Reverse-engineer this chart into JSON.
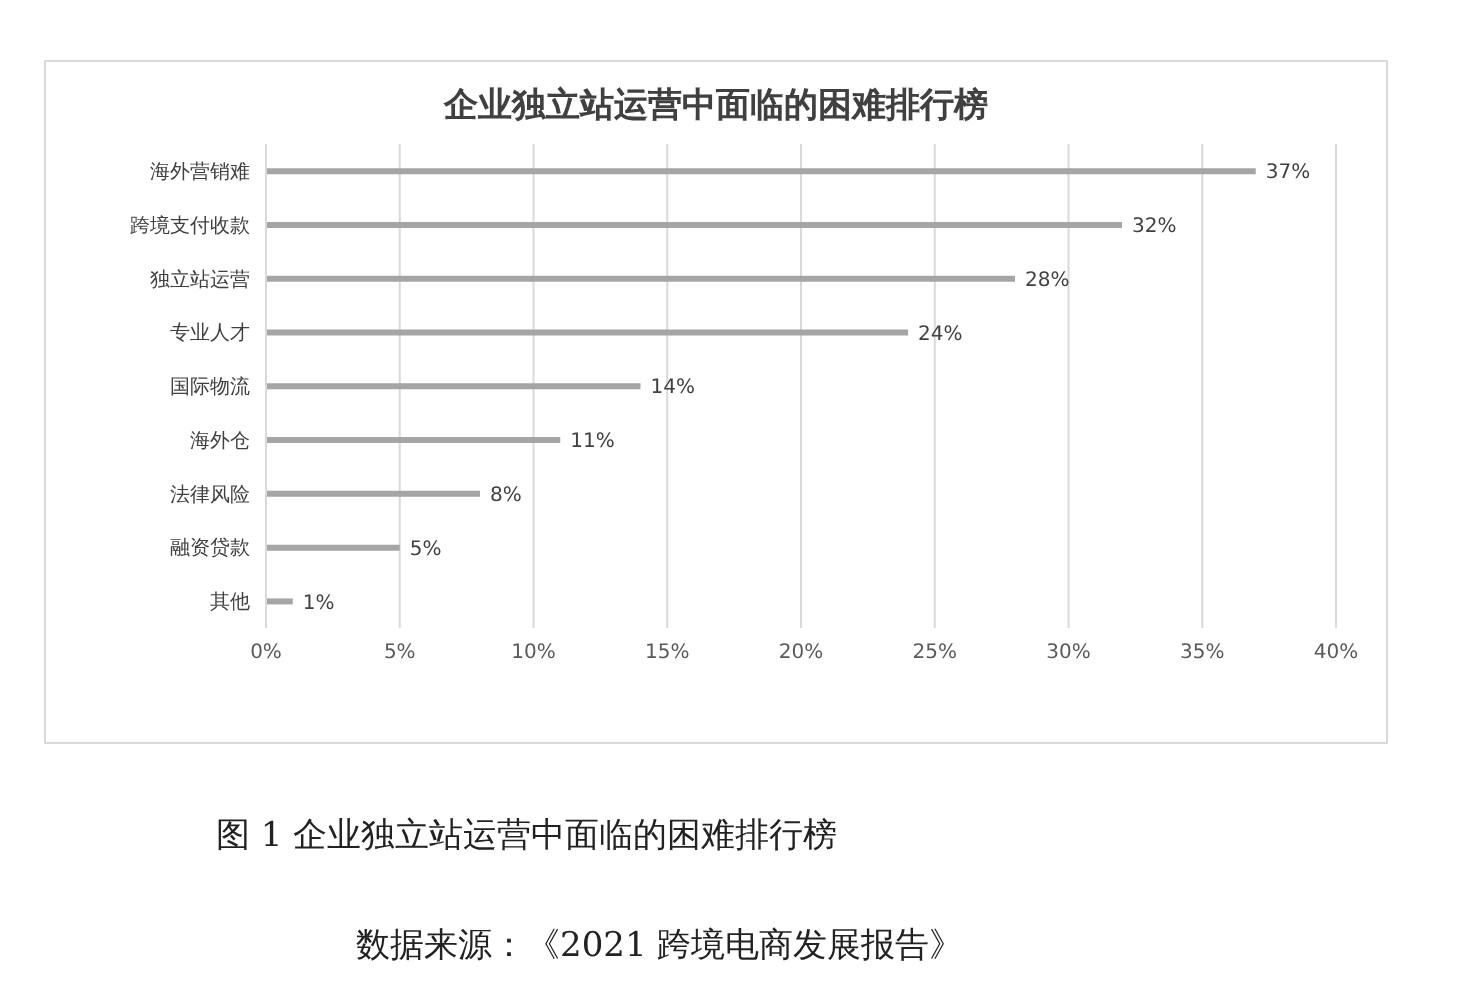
{
  "chart_data": {
    "type": "bar",
    "orientation": "horizontal",
    "title": "企业独立站运营中面临的困难排行榜",
    "categories": [
      "海外营销难",
      "跨境支付收款",
      "独立站运营",
      "专业人才",
      "国际物流",
      "海外仓",
      "法律风险",
      "融资贷款",
      "其他"
    ],
    "values": [
      37,
      32,
      28,
      24,
      14,
      11,
      8,
      5,
      1
    ],
    "value_labels": [
      "37%",
      "32%",
      "28%",
      "24%",
      "14%",
      "11%",
      "8%",
      "5%",
      "1%"
    ],
    "color": "#a5a5a5",
    "xlim": [
      0,
      40
    ],
    "xticks": [
      {
        "value": 0,
        "label": "0%"
      },
      {
        "value": 5,
        "label": "5%"
      },
      {
        "value": 10,
        "label": "10%"
      },
      {
        "value": 15,
        "label": "15%"
      },
      {
        "value": 20,
        "label": "20%"
      },
      {
        "value": 25,
        "label": "25%"
      },
      {
        "value": 30,
        "label": "30%"
      },
      {
        "value": 35,
        "label": "35%"
      },
      {
        "value": 40,
        "label": "40%"
      }
    ],
    "grid": "x",
    "annotations": [
      "图 1  企业独立站运营中面临的困难排行榜",
      "数据来源：《2021 跨境电商发展报告》"
    ]
  }
}
